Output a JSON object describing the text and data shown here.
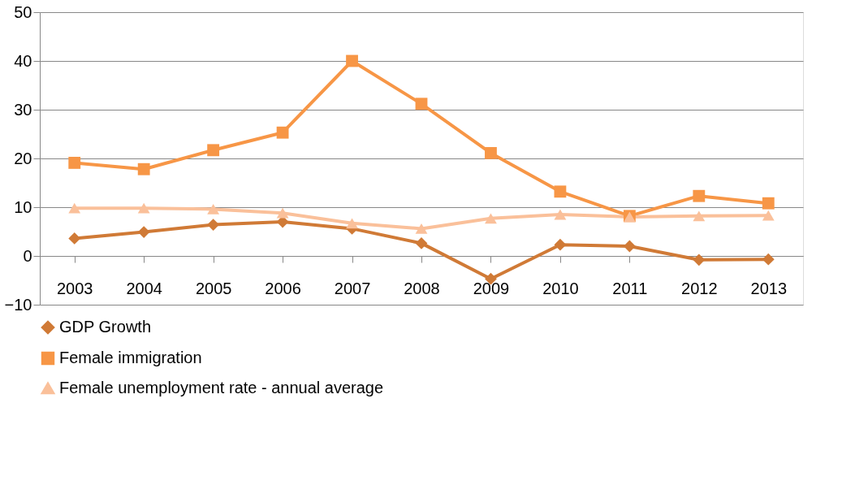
{
  "chart_data": {
    "type": "line",
    "categories": [
      "2003",
      "2004",
      "2005",
      "2006",
      "2007",
      "2008",
      "2009",
      "2010",
      "2011",
      "2012",
      "2013"
    ],
    "series": [
      {
        "name": "GDP Growth",
        "color": "#d07a36",
        "marker": "diamond",
        "values": [
          3.6,
          4.9,
          6.4,
          7.0,
          5.6,
          2.6,
          -4.7,
          2.3,
          2.0,
          -0.8,
          -0.7
        ]
      },
      {
        "name": "Female immigration",
        "color": "#f79646",
        "marker": "square",
        "values": [
          19.1,
          17.8,
          21.7,
          25.3,
          40.0,
          31.2,
          21.1,
          13.2,
          8.2,
          12.3,
          10.8
        ]
      },
      {
        "name": "Female unemployment rate - annual average",
        "color": "#fac09a",
        "marker": "triangle",
        "values": [
          9.8,
          9.8,
          9.6,
          8.8,
          6.7,
          5.6,
          7.7,
          8.5,
          8.0,
          8.2,
          8.3
        ]
      }
    ],
    "ylim": [
      -10,
      50
    ],
    "yticks": [
      -10,
      0,
      10,
      20,
      30,
      40,
      50
    ],
    "grid": "y",
    "legend": "bottom",
    "line_style": "solid"
  }
}
